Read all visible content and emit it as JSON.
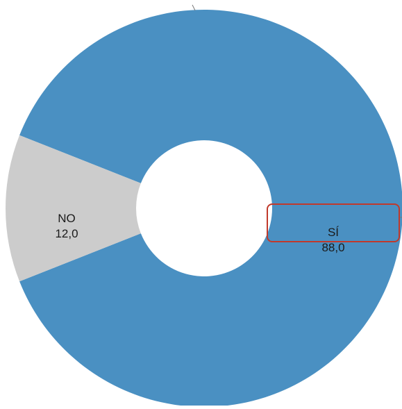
{
  "chart_data": {
    "type": "pie",
    "variant": "donut",
    "categories": [
      "SÍ",
      "NO"
    ],
    "values": [
      88.0,
      12.0
    ],
    "value_labels": [
      "88,0",
      "12,0"
    ],
    "colors": [
      "#4a90c2",
      "#cccccc"
    ],
    "highlighted_label": "SÍ",
    "highlight_color": "#c0392b",
    "title": "",
    "legend": "none"
  }
}
